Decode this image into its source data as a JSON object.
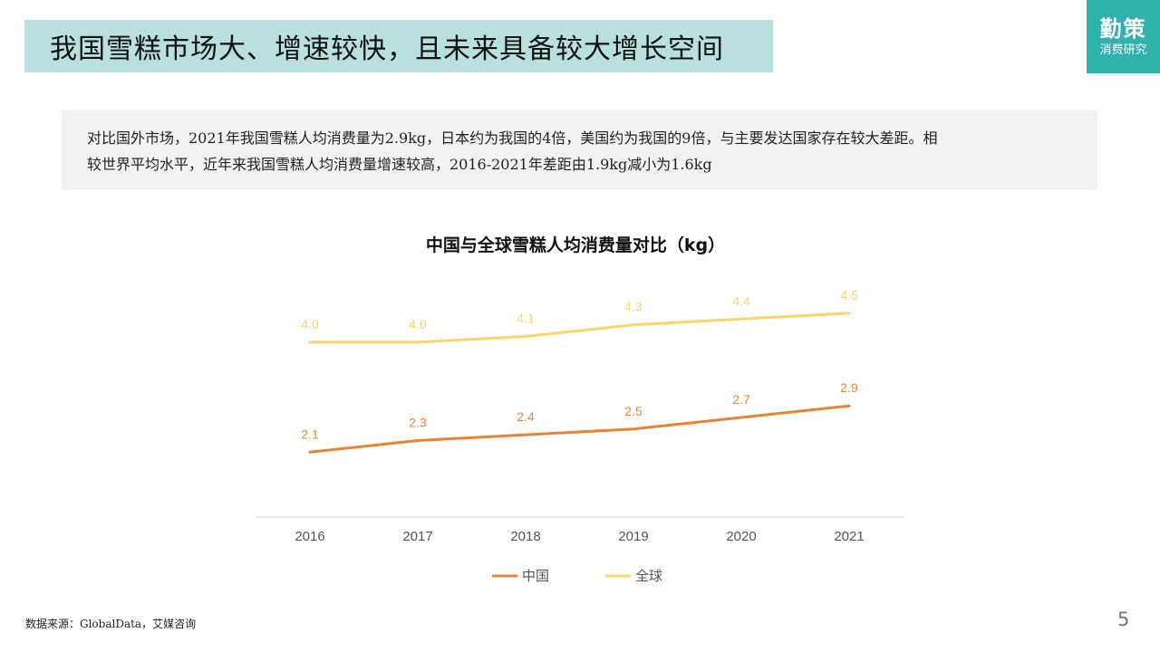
{
  "header": {
    "title": "我国雪糕市场大、增速较快，且未来具备较大增长空间",
    "logo_main": "勤策",
    "logo_sub": "消费研究"
  },
  "summary": {
    "line1": "对比国外市场，2021年我国雪糕人均消费量为2.9kg，日本约为我国的4倍，美国约为我国的9倍，与主要发达国家存在较大差距。相",
    "line2": "较世界平均水平，近年来我国雪糕人均消费量增速较高，2016-2021年差距由1.9kg减小为1.6kg"
  },
  "chart_data": {
    "type": "line",
    "title": "中国与全球雪糕人均消费量对比（kg）",
    "x": [
      "2016",
      "2017",
      "2018",
      "2019",
      "2020",
      "2021"
    ],
    "series": [
      {
        "name": "中国",
        "values": [
          2.1,
          2.3,
          2.4,
          2.5,
          2.7,
          2.9
        ],
        "color": "#e8843a"
      },
      {
        "name": "全球",
        "values": [
          4.0,
          4.0,
          4.1,
          4.3,
          4.4,
          4.5
        ],
        "color": "#fbd46d"
      }
    ],
    "grid": false,
    "legend_position": "bottom"
  },
  "footer": {
    "source": "数据来源：GlobalData，艾媒咨询",
    "page": "5"
  }
}
